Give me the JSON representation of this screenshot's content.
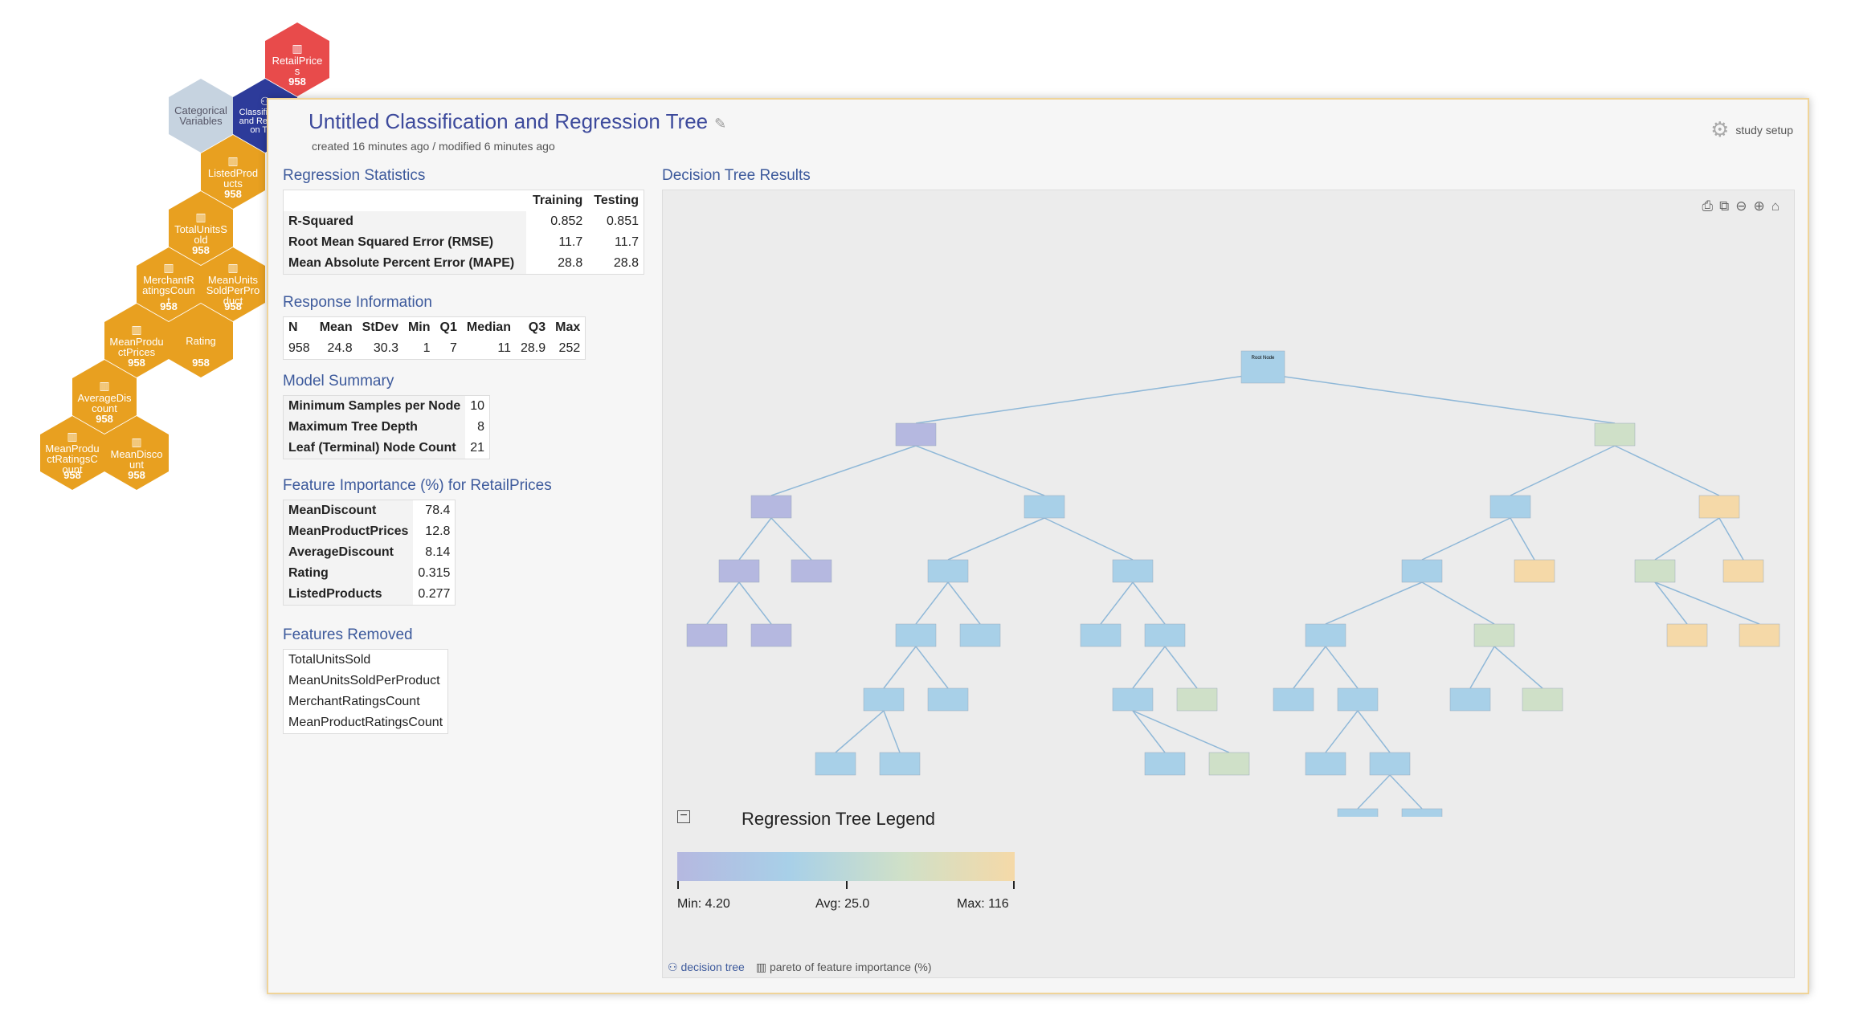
{
  "hexmap": [
    {
      "label": "RetailPrices",
      "count": "958",
      "style": "red"
    },
    {
      "label": "Categorical Variables",
      "count": "",
      "style": "gray"
    },
    {
      "label": "Classification and Regression Tree",
      "count": "",
      "style": "blue"
    },
    {
      "label": "ListedProducts",
      "count": "958",
      "style": "orange"
    },
    {
      "label": "TotalUnitsSold",
      "count": "958",
      "style": "orange"
    },
    {
      "label": "MerchantRatingsCount",
      "count": "958",
      "style": "orange"
    },
    {
      "label": "MeanUnitsSoldPerProduct",
      "count": "958",
      "style": "orange"
    },
    {
      "label": "MeanProductPrices",
      "count": "958",
      "style": "orange"
    },
    {
      "label": "Rating",
      "count": "958",
      "style": "orange"
    },
    {
      "label": "AverageDiscount",
      "count": "958",
      "style": "orange"
    },
    {
      "label": "MeanProductRatingsCount",
      "count": "958",
      "style": "orange"
    },
    {
      "label": "MeanDiscount",
      "count": "958",
      "style": "orange"
    }
  ],
  "header": {
    "title": "Untitled Classification and Regression Tree",
    "subtitle": "created 16 minutes ago / modified 6 minutes ago",
    "setup_label": "study setup"
  },
  "regression_stats": {
    "title": "Regression Statistics",
    "columns": [
      "Training",
      "Testing"
    ],
    "rows": [
      {
        "label": "R-Squared",
        "training": "0.852",
        "testing": "0.851"
      },
      {
        "label": "Root Mean Squared Error (RMSE)",
        "training": "11.7",
        "testing": "11.7"
      },
      {
        "label": "Mean Absolute Percent Error (MAPE)",
        "training": "28.8",
        "testing": "28.8"
      }
    ]
  },
  "response_info": {
    "title": "Response Information",
    "columns": [
      "N",
      "Mean",
      "StDev",
      "Min",
      "Q1",
      "Median",
      "Q3",
      "Max"
    ],
    "values": [
      "958",
      "24.8",
      "30.3",
      "1",
      "7",
      "11",
      "28.9",
      "252"
    ]
  },
  "model_summary": {
    "title": "Model Summary",
    "rows": [
      {
        "label": "Minimum Samples per Node",
        "value": "10"
      },
      {
        "label": "Maximum Tree Depth",
        "value": "8"
      },
      {
        "label": "Leaf (Terminal) Node Count",
        "value": "21"
      }
    ]
  },
  "feature_importance": {
    "title": "Feature Importance (%) for RetailPrices",
    "rows": [
      {
        "label": "MeanDiscount",
        "value": "78.4"
      },
      {
        "label": "MeanProductPrices",
        "value": "12.8"
      },
      {
        "label": "AverageDiscount",
        "value": "8.14"
      },
      {
        "label": "Rating",
        "value": "0.315"
      },
      {
        "label": "ListedProducts",
        "value": "0.277"
      }
    ]
  },
  "features_removed": {
    "title": "Features Removed",
    "items": [
      "TotalUnitsSold",
      "MeanUnitsSoldPerProduct",
      "MerchantRatingsCount",
      "MeanProductRatingsCount"
    ]
  },
  "tree": {
    "title": "Decision Tree Results",
    "root_label": "Root Node",
    "legend_title": "Regression Tree Legend",
    "legend_min": "Min: 4.20",
    "legend_avg": "Avg: 25.0",
    "legend_max": "Max: 116",
    "colors": {
      "low": "#b5b8e0",
      "mid": "#a8d0e8",
      "midhigh": "#cfe0c8",
      "high": "#f5d9a8"
    },
    "tabs": [
      {
        "label": "decision tree",
        "icon": "tree-icon"
      },
      {
        "label": "pareto of feature importance (%)",
        "icon": "bar-chart-icon"
      }
    ]
  }
}
